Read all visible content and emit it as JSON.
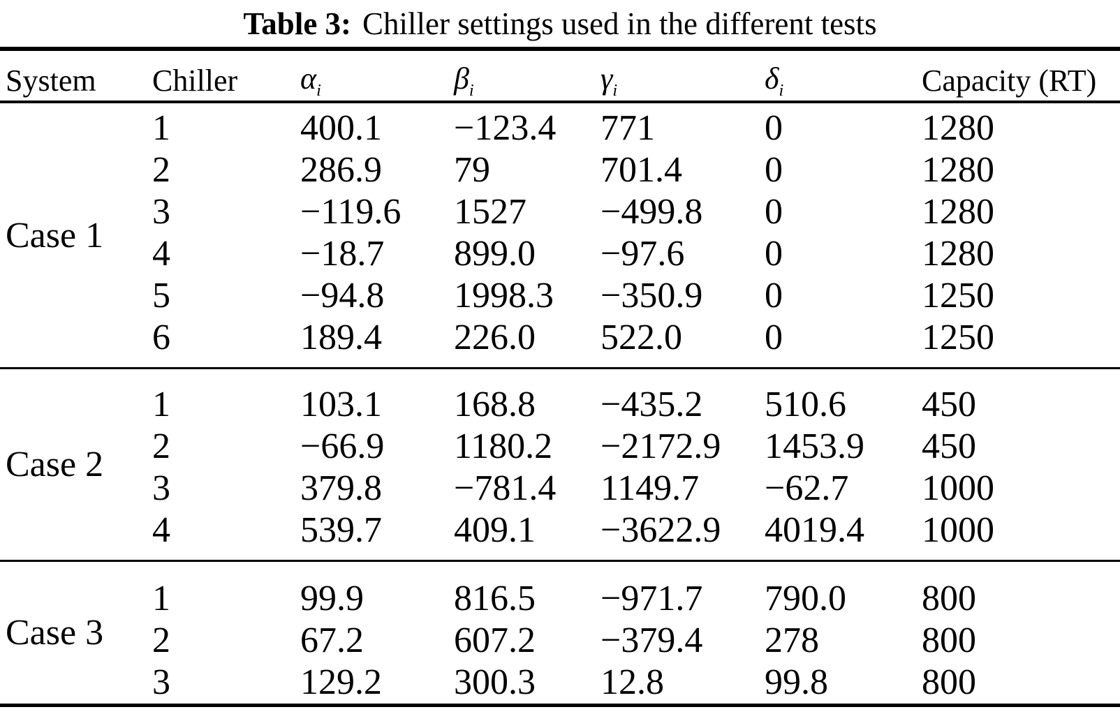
{
  "title": {
    "label": "Table 3:",
    "text": "Chiller settings used in the different tests"
  },
  "colors": {
    "text": "#000000",
    "background": "#ffffff",
    "rule": "#000000"
  },
  "table": {
    "columns": [
      {
        "key": "system",
        "label": "System"
      },
      {
        "key": "chiller",
        "label": "Chiller"
      },
      {
        "key": "alpha",
        "symbol": "α",
        "sub": "i"
      },
      {
        "key": "beta",
        "symbol": "β",
        "sub": "i"
      },
      {
        "key": "gamma",
        "symbol": "γ",
        "sub": "i"
      },
      {
        "key": "delta",
        "symbol": "δ",
        "sub": "i"
      },
      {
        "key": "capacity",
        "label": "Capacity (RT)"
      }
    ],
    "groups": [
      {
        "system": "Case 1",
        "rows": [
          [
            "1",
            "400.1",
            "−123.4",
            "771",
            "0",
            "1280"
          ],
          [
            "2",
            "286.9",
            "79",
            "701.4",
            "0",
            "1280"
          ],
          [
            "3",
            "−119.6",
            "1527",
            "−499.8",
            "0",
            "1280"
          ],
          [
            "4",
            "−18.7",
            "899.0",
            "−97.6",
            "0",
            "1280"
          ],
          [
            "5",
            "−94.8",
            "1998.3",
            "−350.9",
            "0",
            "1250"
          ],
          [
            "6",
            "189.4",
            "226.0",
            "522.0",
            "0",
            "1250"
          ]
        ]
      },
      {
        "system": "Case 2",
        "rows": [
          [
            "1",
            "103.1",
            "168.8",
            "−435.2",
            "510.6",
            "450"
          ],
          [
            "2",
            "−66.9",
            "1180.2",
            "−2172.9",
            "1453.9",
            "450"
          ],
          [
            "3",
            "379.8",
            "−781.4",
            "1149.7",
            "−62.7",
            "1000"
          ],
          [
            "4",
            "539.7",
            "409.1",
            "−3622.9",
            "4019.4",
            "1000"
          ]
        ]
      },
      {
        "system": "Case 3",
        "rows": [
          [
            "1",
            "99.9",
            "816.5",
            "−971.7",
            "790.0",
            "800"
          ],
          [
            "2",
            "67.2",
            "607.2",
            "−379.4",
            "278",
            "800"
          ],
          [
            "3",
            "129.2",
            "300.3",
            "12.8",
            "99.8",
            "800"
          ]
        ]
      }
    ]
  }
}
